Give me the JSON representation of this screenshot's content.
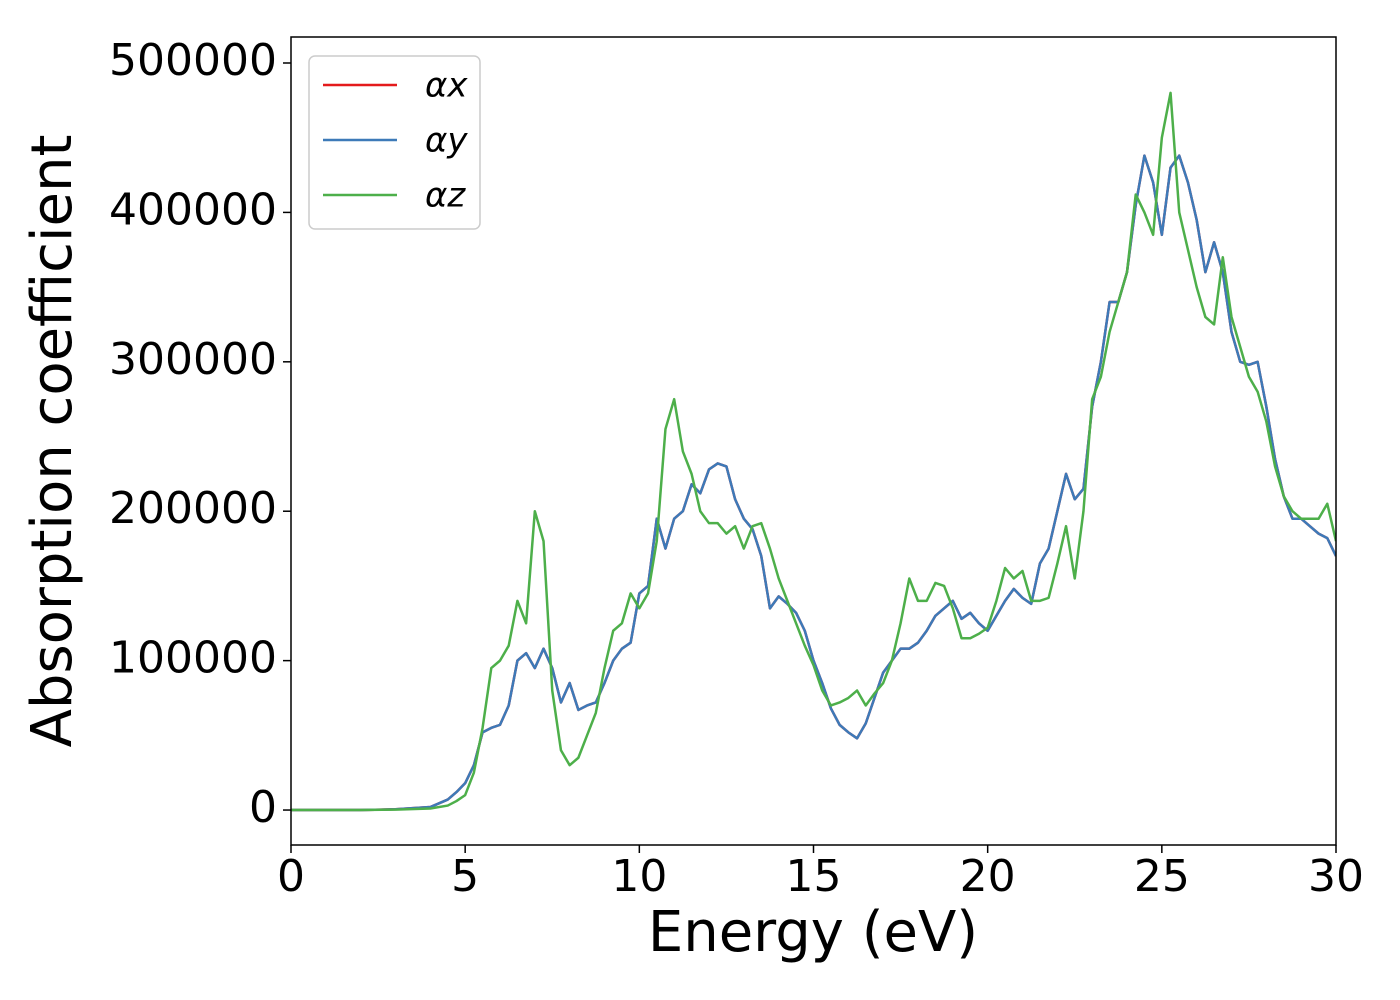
{
  "chart_data": {
    "type": "line",
    "xlabel": "Energy (eV)",
    "ylabel": "Absorption coefficient",
    "x": [
      0,
      1,
      2,
      3,
      4,
      4.5,
      4.75,
      5,
      5.25,
      5.5,
      5.75,
      6,
      6.25,
      6.5,
      6.75,
      7,
      7.25,
      7.5,
      7.75,
      8,
      8.25,
      8.5,
      8.75,
      9,
      9.25,
      9.5,
      9.75,
      10,
      10.25,
      10.5,
      10.75,
      11,
      11.25,
      11.5,
      11.75,
      12,
      12.25,
      12.5,
      12.75,
      13,
      13.25,
      13.5,
      13.75,
      14,
      14.25,
      14.5,
      14.75,
      15,
      15.25,
      15.5,
      15.75,
      16,
      16.25,
      16.5,
      16.75,
      17,
      17.25,
      17.5,
      17.75,
      18,
      18.25,
      18.5,
      18.75,
      19,
      19.25,
      19.5,
      19.75,
      20,
      20.25,
      20.5,
      20.75,
      21,
      21.25,
      21.5,
      21.75,
      22,
      22.25,
      22.5,
      22.75,
      23,
      23.25,
      23.5,
      23.75,
      24,
      24.25,
      24.5,
      24.75,
      25,
      25.25,
      25.5,
      25.75,
      26,
      26.25,
      26.5,
      26.75,
      27,
      27.25,
      27.5,
      27.75,
      28,
      28.25,
      28.5,
      28.75,
      29,
      29.25,
      29.5,
      29.75,
      30
    ],
    "series": [
      {
        "name": "αx",
        "color": "#e41a1c",
        "values": [
          0,
          0,
          0,
          500,
          2000,
          7000,
          12000,
          18000,
          30000,
          52000,
          55000,
          57000,
          70000,
          100000,
          105000,
          95000,
          108000,
          95000,
          72000,
          85000,
          67000,
          70000,
          72000,
          85000,
          100000,
          108000,
          112000,
          145000,
          150000,
          195000,
          175000,
          195000,
          200000,
          218000,
          212000,
          228000,
          232000,
          230000,
          208000,
          195000,
          188000,
          170000,
          135000,
          143000,
          138000,
          132000,
          120000,
          100000,
          85000,
          68000,
          57000,
          52000,
          48000,
          58000,
          75000,
          92000,
          100000,
          108000,
          108000,
          112000,
          120000,
          130000,
          135000,
          140000,
          128000,
          132000,
          125000,
          120000,
          130000,
          140000,
          148000,
          142000,
          138000,
          165000,
          175000,
          200000,
          225000,
          208000,
          215000,
          270000,
          300000,
          340000,
          340000,
          360000,
          405000,
          438000,
          420000,
          385000,
          430000,
          438000,
          420000,
          395000,
          360000,
          380000,
          360000,
          320000,
          300000,
          298000,
          300000,
          270000,
          235000,
          210000,
          195000,
          195000,
          190000,
          185000,
          182000,
          170000
        ]
      },
      {
        "name": "αy",
        "color": "#3d7ab8",
        "values": [
          0,
          0,
          0,
          500,
          2000,
          7000,
          12000,
          18000,
          30000,
          52000,
          55000,
          57000,
          70000,
          100000,
          105000,
          95000,
          108000,
          95000,
          72000,
          85000,
          67000,
          70000,
          72000,
          85000,
          100000,
          108000,
          112000,
          145000,
          150000,
          195000,
          175000,
          195000,
          200000,
          218000,
          212000,
          228000,
          232000,
          230000,
          208000,
          195000,
          188000,
          170000,
          135000,
          143000,
          138000,
          132000,
          120000,
          100000,
          85000,
          68000,
          57000,
          52000,
          48000,
          58000,
          75000,
          92000,
          100000,
          108000,
          108000,
          112000,
          120000,
          130000,
          135000,
          140000,
          128000,
          132000,
          125000,
          120000,
          130000,
          140000,
          148000,
          142000,
          138000,
          165000,
          175000,
          200000,
          225000,
          208000,
          215000,
          270000,
          300000,
          340000,
          340000,
          360000,
          405000,
          438000,
          420000,
          385000,
          430000,
          438000,
          420000,
          395000,
          360000,
          380000,
          360000,
          320000,
          300000,
          298000,
          300000,
          270000,
          235000,
          210000,
          195000,
          195000,
          190000,
          185000,
          182000,
          170000
        ]
      },
      {
        "name": "αz",
        "color": "#4daf4a",
        "values": [
          0,
          0,
          0,
          300,
          1000,
          3000,
          6000,
          10000,
          25000,
          55000,
          95000,
          100000,
          110000,
          140000,
          125000,
          200000,
          180000,
          80000,
          40000,
          30000,
          35000,
          50000,
          65000,
          95000,
          120000,
          125000,
          145000,
          135000,
          145000,
          180000,
          255000,
          275000,
          240000,
          225000,
          200000,
          192000,
          192000,
          185000,
          190000,
          175000,
          190000,
          192000,
          175000,
          155000,
          140000,
          125000,
          110000,
          97000,
          80000,
          70000,
          72000,
          75000,
          80000,
          70000,
          78000,
          85000,
          100000,
          125000,
          155000,
          140000,
          140000,
          152000,
          150000,
          135000,
          115000,
          115000,
          118000,
          122000,
          140000,
          162000,
          155000,
          160000,
          140000,
          140000,
          142000,
          165000,
          190000,
          155000,
          200000,
          275000,
          290000,
          320000,
          340000,
          360000,
          412000,
          400000,
          385000,
          450000,
          480000,
          400000,
          375000,
          350000,
          330000,
          325000,
          370000,
          330000,
          310000,
          290000,
          280000,
          260000,
          230000,
          210000,
          200000,
          195000,
          195000,
          195000,
          205000,
          180000
        ]
      }
    ],
    "xlim": [
      0,
      30
    ],
    "xticks": [
      0,
      5,
      10,
      15,
      20,
      25,
      30
    ],
    "ylim": [
      -23400,
      517400
    ],
    "yticks": [
      0,
      100000,
      200000,
      300000,
      400000,
      500000
    ],
    "grid": false,
    "legend": "upper left"
  }
}
